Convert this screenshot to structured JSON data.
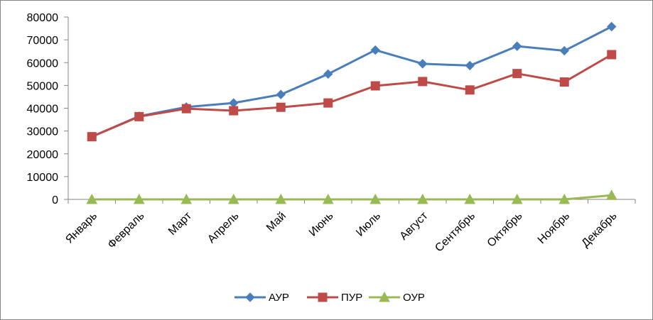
{
  "chart_data": {
    "type": "line",
    "title": "",
    "xlabel": "",
    "ylabel": "",
    "categories": [
      "Январь",
      "Февраль",
      "Март",
      "Апрель",
      "Май",
      "Июнь",
      "Июль",
      "Август",
      "Сентябрь",
      "Октябрь",
      "Ноябрь",
      "Декабрь"
    ],
    "ylim": [
      0,
      80000
    ],
    "yticks": [
      0,
      10000,
      20000,
      30000,
      40000,
      50000,
      60000,
      70000,
      80000
    ],
    "grid": false,
    "legend_position": "bottom",
    "series": [
      {
        "name": "АУР",
        "color": "#4A7EBB",
        "marker": "diamond",
        "values": [
          27500,
          36500,
          40500,
          42300,
          46000,
          55000,
          65500,
          59500,
          58700,
          67200,
          65200,
          75800
        ]
      },
      {
        "name": "ПУР",
        "color": "#BE4B48",
        "marker": "square",
        "values": [
          27500,
          36300,
          39800,
          38900,
          40400,
          42300,
          49800,
          51700,
          48000,
          55200,
          51500,
          63500
        ]
      },
      {
        "name": "ОУР",
        "color": "#98B954",
        "marker": "triangle",
        "values": [
          0,
          0,
          0,
          0,
          0,
          0,
          0,
          0,
          0,
          0,
          0,
          1800
        ]
      }
    ]
  }
}
